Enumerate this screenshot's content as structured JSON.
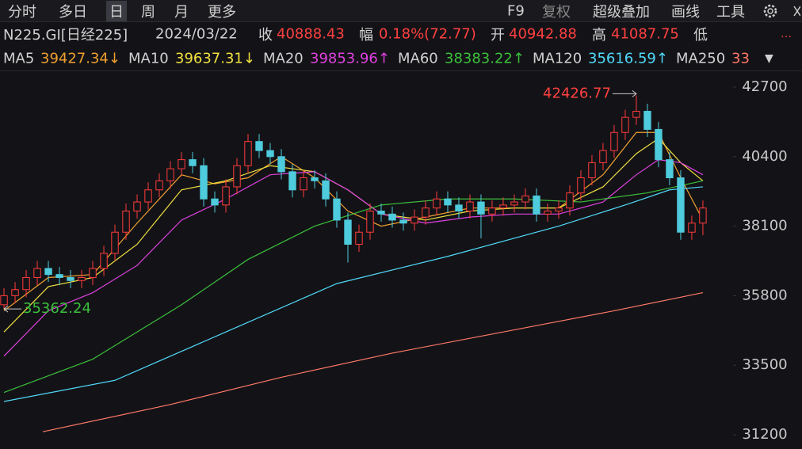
{
  "toolbar": {
    "tabs": [
      "分时",
      "多日",
      "日",
      "周",
      "月",
      "更多"
    ],
    "right": [
      "F9",
      "复权",
      "超级叠加",
      "画线",
      "工具"
    ]
  },
  "quote": {
    "symbol": "N225.GI[日经225]",
    "date": "2024/03/22",
    "close_label": "收",
    "close": 40888.43,
    "change_label": "幅",
    "change": "0.18%(72.77)",
    "open_label": "开",
    "open": 40942.88,
    "high_label": "高",
    "high": 41087.75,
    "low_label": "低"
  },
  "chart_data": {
    "type": "candlestick",
    "x": [
      0,
      1,
      2,
      3,
      4,
      5,
      6,
      7,
      8,
      9,
      10,
      11,
      12,
      13,
      14,
      15,
      16,
      17,
      18,
      19,
      20,
      21,
      22,
      23,
      24,
      25,
      26,
      27,
      28,
      29,
      30,
      31,
      32,
      33,
      34,
      35,
      36,
      37,
      38,
      39,
      40,
      41,
      42,
      43,
      44,
      45,
      46,
      47,
      48,
      49,
      50,
      51,
      52,
      53,
      54,
      55,
      56,
      57,
      58,
      59,
      60,
      61,
      62,
      63
    ],
    "open": [
      35500,
      35800,
      36000,
      36400,
      36700,
      36500,
      36400,
      36300,
      36400,
      36700,
      37200,
      37900,
      38600,
      38900,
      39300,
      39600,
      40000,
      40300,
      40100,
      39000,
      38800,
      39400,
      40100,
      40900,
      40600,
      40400,
      39900,
      39300,
      39700,
      39600,
      39000,
      38300,
      37500,
      37900,
      38600,
      38500,
      38300,
      38200,
      38400,
      38700,
      39000,
      38800,
      38600,
      38900,
      38500,
      38700,
      38800,
      38900,
      39100,
      38500,
      38600,
      38700,
      39200,
      39700,
      40200,
      40600,
      41200,
      41700,
      41900,
      41300,
      40300,
      39700,
      37900,
      38200
    ],
    "close": [
      35800,
      36000,
      36400,
      36700,
      36500,
      36400,
      36300,
      36400,
      36700,
      37200,
      37900,
      38600,
      38900,
      39300,
      39600,
      40000,
      40300,
      40100,
      39000,
      38800,
      39400,
      40100,
      40900,
      40600,
      40400,
      39900,
      39300,
      39700,
      39600,
      39000,
      38300,
      37500,
      37900,
      38600,
      38500,
      38300,
      38200,
      38400,
      38700,
      39000,
      38800,
      38600,
      38900,
      38500,
      38700,
      38800,
      38900,
      39100,
      38500,
      38600,
      38700,
      39200,
      39700,
      40200,
      40600,
      41200,
      41700,
      41900,
      41300,
      40300,
      39700,
      37900,
      38200,
      38700
    ],
    "high": [
      36050,
      36250,
      36650,
      36950,
      36950,
      36750,
      36650,
      36650,
      36950,
      37450,
      38150,
      38850,
      39150,
      39550,
      39850,
      40250,
      40550,
      40550,
      40350,
      39250,
      39650,
      40350,
      41150,
      41150,
      40850,
      40650,
      40150,
      39950,
      39950,
      39850,
      39250,
      38550,
      38150,
      38850,
      38850,
      38750,
      38550,
      38650,
      38950,
      39250,
      39250,
      39050,
      39150,
      39150,
      38950,
      39050,
      39150,
      39350,
      39350,
      38850,
      38950,
      39450,
      39950,
      40450,
      40850,
      41450,
      41950,
      42426.77,
      42150,
      41550,
      40550,
      39950,
      38450,
      38950
    ],
    "low": [
      35362.24,
      35550,
      35750,
      36150,
      36250,
      36150,
      36050,
      36050,
      36150,
      36450,
      36950,
      37650,
      38350,
      38650,
      39050,
      39350,
      39750,
      39850,
      38750,
      38550,
      38550,
      39150,
      39850,
      40350,
      40150,
      39650,
      39050,
      39050,
      39350,
      38750,
      38050,
      36900,
      37250,
      37650,
      38250,
      38050,
      37950,
      37950,
      38150,
      38450,
      38550,
      38350,
      38350,
      37700,
      38250,
      38450,
      38550,
      38650,
      38250,
      38250,
      38350,
      38450,
      38950,
      39450,
      39950,
      40350,
      40950,
      41450,
      41050,
      40050,
      39450,
      37650,
      37650,
      37800
    ],
    "up_color": "#ff3b3b",
    "down_color": "#4ecbdc",
    "max_label": 42426.77,
    "min_label": 35362.24,
    "series": [
      {
        "name": "MA5",
        "legend_value": "39427.34↓",
        "color": "#f0a030",
        "x": [
          0,
          4,
          8,
          12,
          16,
          19,
          22,
          25,
          28,
          31,
          34,
          38,
          42,
          46,
          50,
          54,
          57,
          59,
          61,
          63
        ],
        "values": [
          35300,
          36400,
          36500,
          38200,
          39800,
          39500,
          39700,
          40400,
          39700,
          38600,
          38100,
          38400,
          38700,
          38700,
          38700,
          39800,
          41200,
          41200,
          39700,
          38300
        ]
      },
      {
        "name": "MA10",
        "legend_value": "39637.31↓",
        "color": "#f0e040",
        "x": [
          0,
          4,
          8,
          12,
          16,
          20,
          24,
          28,
          31,
          34,
          38,
          42,
          46,
          50,
          54,
          57,
          59,
          61,
          63
        ],
        "values": [
          34600,
          36100,
          36400,
          37500,
          39300,
          39600,
          40100,
          39900,
          39300,
          38500,
          38300,
          38600,
          38700,
          38700,
          39400,
          40500,
          41000,
          40200,
          39600
        ]
      },
      {
        "name": "MA20",
        "legend_value": "39853.96↑",
        "color": "#e040e0",
        "x": [
          0,
          4,
          8,
          12,
          16,
          20,
          24,
          28,
          31,
          34,
          38,
          42,
          46,
          50,
          54,
          57,
          59,
          61,
          63
        ],
        "values": [
          33800,
          35300,
          35900,
          36800,
          38300,
          39000,
          39800,
          39900,
          39300,
          38500,
          38200,
          38400,
          38500,
          38500,
          38900,
          39800,
          40300,
          40200,
          39800
        ]
      },
      {
        "name": "MA60",
        "legend_value": "38383.22↑",
        "color": "#3cc03c",
        "x": [
          0,
          8,
          16,
          22,
          28,
          34,
          40,
          46,
          52,
          58,
          63
        ],
        "values": [
          32600,
          33700,
          35500,
          37000,
          38100,
          38800,
          39000,
          39000,
          38900,
          39200,
          39600
        ]
      },
      {
        "name": "MA120",
        "legend_value": "35616.59↑",
        "color": "#50d8f8",
        "x": [
          0,
          10,
          20,
          30,
          40,
          50,
          56,
          60,
          63
        ],
        "values": [
          32300,
          33000,
          34600,
          36200,
          37100,
          38100,
          38800,
          39300,
          39400
        ]
      },
      {
        "name": "MA250",
        "legend_value": "33",
        "color": "#ff7868",
        "x": [
          3.5,
          15,
          25,
          35,
          45,
          55,
          63
        ],
        "values": [
          31300,
          32200,
          33100,
          33900,
          34600,
          35300,
          35900
        ]
      }
    ],
    "ylim": [
      30728,
      43276
    ],
    "xlim": [
      -0.36,
      64.29
    ],
    "yticks": [
      42700,
      40400,
      38100,
      35800,
      33500,
      31200
    ]
  }
}
